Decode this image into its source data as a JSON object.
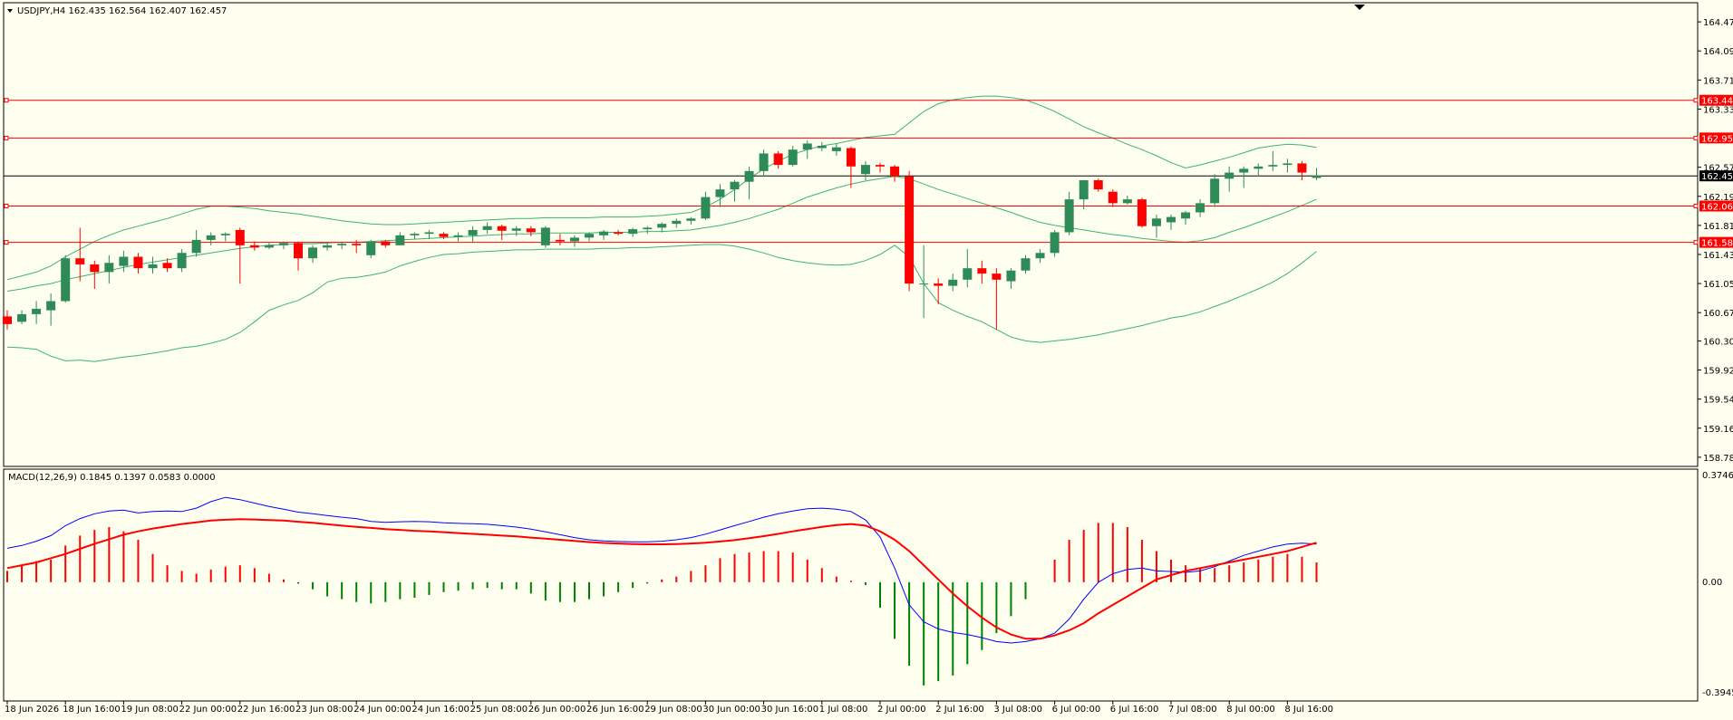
{
  "main": {
    "symbol_header": "USDJPY,H4  162.435 162.564 162.407 162.457",
    "price_labels": [
      "164.470",
      "164.090",
      "163.710",
      "163.330",
      "162.570",
      "162.190",
      "161.810",
      "161.430",
      "161.050",
      "160.670",
      "160.300",
      "159.920",
      "159.540",
      "159.160",
      "158.780"
    ],
    "level_lines": [
      {
        "label": "163.445",
        "bg": "#ff0000"
      },
      {
        "label": "162.952",
        "bg": "#ff0000"
      },
      {
        "label": "162.063",
        "bg": "#ff0000"
      },
      {
        "label": "161.588",
        "bg": "#ff0000"
      }
    ],
    "current_price": {
      "label": "162.457",
      "bg": "#000000"
    }
  },
  "macd": {
    "header": "MACD(12,26,9) 0.1845 0.1397 0.0583 0.0000",
    "top_label": "0.3746",
    "zero_label": "0.00",
    "bottom_label": "-0.3945"
  },
  "time_axis": {
    "labels": [
      "18 Jun 2026",
      "18 Jun 16:00",
      "19 Jun 08:00",
      "22 Jun 00:00",
      "22 Jun 16:00",
      "23 Jun 08:00",
      "24 Jun 00:00",
      "24 Jun 16:00",
      "25 Jun 08:00",
      "26 Jun 00:00",
      "26 Jun 16:00",
      "29 Jun 08:00",
      "30 Jun 00:00",
      "30 Jun 16:00",
      "1 Jul 08:00",
      "2 Jul 00:00",
      "2 Jul 16:00",
      "3 Jul 08:00",
      "6 Jul 00:00",
      "6 Jul 16:00",
      "7 Jul 08:00",
      "8 Jul 00:00",
      "8 Jul 16:00"
    ]
  },
  "colors": {
    "background": "#fffff0",
    "bull": "#2e8b57",
    "bear": "#ff0000",
    "bands": "#3cb371",
    "level_line": "#ff0000",
    "price_line": "#000000",
    "macd_line": "#0000ff",
    "signal_line": "#ff0000",
    "hist_pos": "#ff0000",
    "hist_neg": "#008000"
  },
  "chart_data": {
    "type": "candlestick",
    "candles": [
      [
        160.62,
        160.7,
        160.45,
        160.52
      ],
      [
        160.55,
        160.7,
        160.52,
        160.65
      ],
      [
        160.65,
        160.82,
        160.52,
        160.72
      ],
      [
        160.7,
        160.92,
        160.5,
        160.82
      ],
      [
        160.82,
        161.42,
        160.8,
        161.38
      ],
      [
        161.38,
        161.78,
        161.08,
        161.3
      ],
      [
        161.3,
        161.35,
        160.98,
        161.2
      ],
      [
        161.2,
        161.42,
        161.05,
        161.32
      ],
      [
        161.28,
        161.48,
        161.2,
        161.4
      ],
      [
        161.4,
        161.45,
        161.18,
        161.25
      ],
      [
        161.25,
        161.4,
        161.18,
        161.3
      ],
      [
        161.32,
        161.38,
        161.2,
        161.25
      ],
      [
        161.25,
        161.5,
        161.2,
        161.45
      ],
      [
        161.45,
        161.75,
        161.4,
        161.62
      ],
      [
        161.62,
        161.72,
        161.55,
        161.68
      ],
      [
        161.68,
        161.72,
        161.6,
        161.7
      ],
      [
        161.75,
        161.78,
        161.05,
        161.55
      ],
      [
        161.55,
        161.6,
        161.48,
        161.52
      ],
      [
        161.52,
        161.58,
        161.5,
        161.55
      ],
      [
        161.55,
        161.6,
        161.5,
        161.58
      ],
      [
        161.58,
        161.6,
        161.22,
        161.38
      ],
      [
        161.38,
        161.55,
        161.32,
        161.52
      ],
      [
        161.52,
        161.58,
        161.48,
        161.55
      ],
      [
        161.55,
        161.6,
        161.5,
        161.57
      ],
      [
        161.57,
        161.62,
        161.45,
        161.55
      ],
      [
        161.42,
        161.62,
        161.38,
        161.6
      ],
      [
        161.6,
        161.62,
        161.52,
        161.55
      ],
      [
        161.55,
        161.72,
        161.55,
        161.68
      ],
      [
        161.68,
        161.72,
        161.63,
        161.7
      ],
      [
        161.7,
        161.75,
        161.63,
        161.72
      ],
      [
        161.7,
        161.72,
        161.63,
        161.66
      ],
      [
        161.66,
        161.72,
        161.6,
        161.68
      ],
      [
        161.68,
        161.8,
        161.58,
        161.75
      ],
      [
        161.75,
        161.85,
        161.7,
        161.8
      ],
      [
        161.8,
        161.82,
        161.62,
        161.74
      ],
      [
        161.74,
        161.8,
        161.67,
        161.77
      ],
      [
        161.77,
        161.8,
        161.67,
        161.72
      ],
      [
        161.55,
        161.8,
        161.52,
        161.78
      ],
      [
        161.62,
        161.7,
        161.55,
        161.6
      ],
      [
        161.6,
        161.68,
        161.53,
        161.65
      ],
      [
        161.65,
        161.72,
        161.6,
        161.7
      ],
      [
        161.68,
        161.75,
        161.62,
        161.73
      ],
      [
        161.72,
        161.75,
        161.68,
        161.7
      ],
      [
        161.7,
        161.78,
        161.66,
        161.76
      ],
      [
        161.76,
        161.8,
        161.7,
        161.78
      ],
      [
        161.78,
        161.85,
        161.72,
        161.83
      ],
      [
        161.83,
        161.9,
        161.78,
        161.87
      ],
      [
        161.87,
        161.92,
        161.82,
        161.9
      ],
      [
        161.9,
        162.25,
        161.88,
        162.18
      ],
      [
        162.18,
        162.35,
        162.05,
        162.28
      ],
      [
        162.28,
        162.4,
        162.12,
        162.38
      ],
      [
        162.38,
        162.58,
        162.15,
        162.52
      ],
      [
        162.52,
        162.8,
        162.45,
        162.75
      ],
      [
        162.75,
        162.78,
        162.55,
        162.6
      ],
      [
        162.6,
        162.85,
        162.58,
        162.8
      ],
      [
        162.8,
        162.92,
        162.68,
        162.88
      ],
      [
        162.82,
        162.9,
        162.78,
        162.85
      ],
      [
        162.78,
        162.88,
        162.72,
        162.83
      ],
      [
        162.82,
        162.84,
        162.3,
        162.58
      ],
      [
        162.48,
        162.65,
        162.4,
        162.6
      ],
      [
        162.6,
        162.63,
        162.5,
        162.58
      ],
      [
        162.58,
        162.6,
        162.38,
        162.45
      ],
      [
        162.45,
        162.52,
        160.95,
        161.05
      ],
      [
        161.05,
        161.55,
        160.6,
        161.05
      ],
      [
        161.05,
        161.12,
        160.78,
        161.02
      ],
      [
        161.02,
        161.18,
        160.95,
        161.1
      ],
      [
        161.1,
        161.5,
        161.0,
        161.25
      ],
      [
        161.25,
        161.35,
        161.05,
        161.18
      ],
      [
        161.18,
        161.25,
        160.45,
        161.1
      ],
      [
        161.08,
        161.25,
        160.98,
        161.22
      ],
      [
        161.22,
        161.42,
        161.18,
        161.38
      ],
      [
        161.38,
        161.5,
        161.32,
        161.45
      ],
      [
        161.45,
        161.75,
        161.4,
        161.72
      ],
      [
        161.72,
        162.25,
        161.68,
        162.15
      ],
      [
        162.15,
        162.4,
        162.02,
        162.4
      ],
      [
        162.4,
        162.42,
        162.25,
        162.28
      ],
      [
        162.25,
        162.28,
        162.05,
        162.1
      ],
      [
        162.1,
        162.2,
        162.08,
        162.15
      ],
      [
        162.15,
        162.17,
        161.78,
        161.8
      ],
      [
        161.8,
        161.95,
        161.65,
        161.9
      ],
      [
        161.85,
        161.95,
        161.75,
        161.92
      ],
      [
        161.9,
        162.0,
        161.82,
        161.98
      ],
      [
        161.98,
        162.15,
        161.92,
        162.1
      ],
      [
        162.1,
        162.48,
        162.05,
        162.42
      ],
      [
        162.42,
        162.58,
        162.25,
        162.5
      ],
      [
        162.5,
        162.58,
        162.3,
        162.55
      ],
      [
        162.55,
        162.62,
        162.45,
        162.58
      ],
      [
        162.58,
        162.78,
        162.52,
        162.6
      ],
      [
        162.6,
        162.68,
        162.5,
        162.62
      ],
      [
        162.62,
        162.65,
        162.4,
        162.5
      ],
      [
        162.43,
        162.56,
        162.4,
        162.46
      ]
    ],
    "middle_band": [
      160.95,
      160.98,
      161.02,
      161.05,
      161.1,
      161.14,
      161.18,
      161.22,
      161.26,
      161.3,
      161.33,
      161.36,
      161.39,
      161.42,
      161.45,
      161.48,
      161.51,
      161.53,
      161.55,
      161.56,
      161.57,
      161.57,
      161.58,
      161.59,
      161.59,
      161.6,
      161.61,
      161.62,
      161.63,
      161.64,
      161.65,
      161.66,
      161.67,
      161.68,
      161.69,
      161.7,
      161.7,
      161.71,
      161.71,
      161.71,
      161.71,
      161.72,
      161.72,
      161.72,
      161.73,
      161.73,
      161.74,
      161.75,
      161.78,
      161.81,
      161.85,
      161.9,
      161.96,
      162.02,
      162.1,
      162.18,
      162.24,
      162.3,
      162.35,
      162.39,
      162.42,
      162.45,
      162.42,
      162.35,
      162.28,
      162.22,
      162.16,
      162.1,
      162.04,
      161.98,
      161.91,
      161.85,
      161.81,
      161.78,
      161.75,
      161.72,
      161.69,
      161.67,
      161.64,
      161.62,
      161.6,
      161.59,
      161.61,
      161.65,
      161.72,
      161.78,
      161.85,
      161.92,
      161.99,
      162.07,
      162.15
    ],
    "upper_band": [
      161.1,
      161.15,
      161.2,
      161.28,
      161.4,
      161.5,
      161.6,
      161.68,
      161.75,
      161.8,
      161.85,
      161.9,
      161.96,
      162.02,
      162.06,
      162.06,
      162.05,
      162.03,
      162.0,
      161.98,
      161.96,
      161.93,
      161.9,
      161.87,
      161.85,
      161.83,
      161.82,
      161.82,
      161.83,
      161.84,
      161.85,
      161.86,
      161.87,
      161.88,
      161.89,
      161.9,
      161.9,
      161.91,
      161.91,
      161.91,
      161.91,
      161.92,
      161.92,
      161.92,
      161.93,
      161.94,
      161.96,
      161.98,
      162.05,
      162.15,
      162.28,
      162.42,
      162.55,
      162.65,
      162.74,
      162.8,
      162.85,
      162.88,
      162.92,
      162.96,
      162.98,
      163.0,
      163.15,
      163.3,
      163.4,
      163.45,
      163.48,
      163.5,
      163.5,
      163.48,
      163.45,
      163.38,
      163.3,
      163.2,
      163.1,
      163.02,
      162.95,
      162.87,
      162.8,
      162.72,
      162.63,
      162.56,
      162.6,
      162.65,
      162.7,
      162.76,
      162.82,
      162.85,
      162.87,
      162.86,
      162.83
    ],
    "lower_band": [
      160.22,
      160.21,
      160.19,
      160.1,
      160.04,
      160.05,
      160.03,
      160.06,
      160.09,
      160.11,
      160.14,
      160.17,
      160.21,
      160.23,
      160.27,
      160.32,
      160.41,
      160.55,
      160.7,
      160.77,
      160.83,
      160.93,
      161.07,
      161.12,
      161.13,
      161.16,
      161.2,
      161.28,
      161.34,
      161.39,
      161.43,
      161.44,
      161.46,
      161.47,
      161.48,
      161.49,
      161.49,
      161.5,
      161.5,
      161.5,
      161.5,
      161.51,
      161.51,
      161.52,
      161.52,
      161.53,
      161.54,
      161.55,
      161.56,
      161.56,
      161.54,
      161.5,
      161.45,
      161.39,
      161.35,
      161.32,
      161.3,
      161.29,
      161.3,
      161.35,
      161.43,
      161.55,
      161.4,
      161.05,
      160.8,
      160.7,
      160.62,
      160.55,
      160.45,
      160.35,
      160.3,
      160.28,
      160.3,
      160.32,
      160.35,
      160.38,
      160.42,
      160.46,
      160.5,
      160.55,
      160.6,
      160.63,
      160.68,
      160.75,
      160.82,
      160.9,
      160.98,
      161.07,
      161.18,
      161.32,
      161.47
    ],
    "macd_line": [
      0.12,
      0.13,
      0.145,
      0.165,
      0.2,
      0.225,
      0.242,
      0.252,
      0.255,
      0.245,
      0.25,
      0.252,
      0.25,
      0.262,
      0.285,
      0.3,
      0.292,
      0.28,
      0.268,
      0.258,
      0.248,
      0.242,
      0.236,
      0.23,
      0.225,
      0.215,
      0.212,
      0.214,
      0.215,
      0.214,
      0.21,
      0.208,
      0.207,
      0.205,
      0.2,
      0.195,
      0.188,
      0.178,
      0.168,
      0.158,
      0.15,
      0.146,
      0.144,
      0.143,
      0.143,
      0.145,
      0.15,
      0.158,
      0.17,
      0.185,
      0.2,
      0.215,
      0.23,
      0.242,
      0.252,
      0.26,
      0.262,
      0.258,
      0.25,
      0.22,
      0.16,
      0.05,
      -0.08,
      -0.14,
      -0.165,
      -0.178,
      -0.185,
      -0.196,
      -0.21,
      -0.215,
      -0.21,
      -0.2,
      -0.18,
      -0.13,
      -0.06,
      0.0,
      0.03,
      0.045,
      0.05,
      0.04,
      0.038,
      0.035,
      0.04,
      0.055,
      0.075,
      0.095,
      0.11,
      0.125,
      0.135,
      0.138,
      0.135
    ],
    "signal_line": [
      0.05,
      0.06,
      0.07,
      0.085,
      0.1,
      0.118,
      0.136,
      0.152,
      0.168,
      0.18,
      0.19,
      0.198,
      0.206,
      0.212,
      0.218,
      0.221,
      0.223,
      0.222,
      0.22,
      0.218,
      0.214,
      0.21,
      0.205,
      0.2,
      0.196,
      0.192,
      0.188,
      0.185,
      0.182,
      0.18,
      0.177,
      0.174,
      0.171,
      0.168,
      0.165,
      0.162,
      0.158,
      0.154,
      0.15,
      0.146,
      0.142,
      0.139,
      0.137,
      0.135,
      0.134,
      0.134,
      0.135,
      0.137,
      0.14,
      0.144,
      0.149,
      0.156,
      0.163,
      0.171,
      0.18,
      0.188,
      0.196,
      0.202,
      0.206,
      0.2,
      0.18,
      0.15,
      0.11,
      0.06,
      0.01,
      -0.04,
      -0.085,
      -0.125,
      -0.16,
      -0.185,
      -0.2,
      -0.2,
      -0.188,
      -0.17,
      -0.145,
      -0.11,
      -0.08,
      -0.05,
      -0.02,
      0.01,
      0.025,
      0.04,
      0.05,
      0.06,
      0.07,
      0.08,
      0.09,
      0.1,
      0.11,
      0.125,
      0.14
    ],
    "histogram": [
      0.04,
      0.06,
      0.075,
      0.08,
      0.13,
      0.165,
      0.185,
      0.195,
      0.18,
      0.15,
      0.1,
      0.06,
      0.04,
      0.03,
      0.045,
      0.055,
      0.06,
      0.05,
      0.03,
      0.01,
      -0.005,
      -0.025,
      -0.05,
      -0.06,
      -0.07,
      -0.075,
      -0.07,
      -0.06,
      -0.055,
      -0.045,
      -0.035,
      -0.03,
      -0.025,
      -0.02,
      -0.025,
      -0.025,
      -0.04,
      -0.065,
      -0.07,
      -0.07,
      -0.06,
      -0.05,
      -0.035,
      -0.02,
      -0.005,
      0.01,
      0.02,
      0.04,
      0.06,
      0.085,
      0.1,
      0.105,
      0.11,
      0.11,
      0.105,
      0.08,
      0.05,
      0.02,
      0.005,
      -0.01,
      -0.09,
      -0.2,
      -0.295,
      -0.365,
      -0.35,
      -0.33,
      -0.29,
      -0.24,
      -0.18,
      -0.12,
      -0.06,
      0.0,
      0.08,
      0.15,
      0.185,
      0.21,
      0.21,
      0.195,
      0.15,
      0.11,
      0.08,
      0.06,
      0.05,
      0.05,
      0.06,
      0.07,
      0.08,
      0.09,
      0.1,
      0.09,
      0.07
    ],
    "ylim_main": [
      158.66,
      164.72
    ],
    "ylim_macd": [
      -0.42,
      0.4
    ]
  }
}
